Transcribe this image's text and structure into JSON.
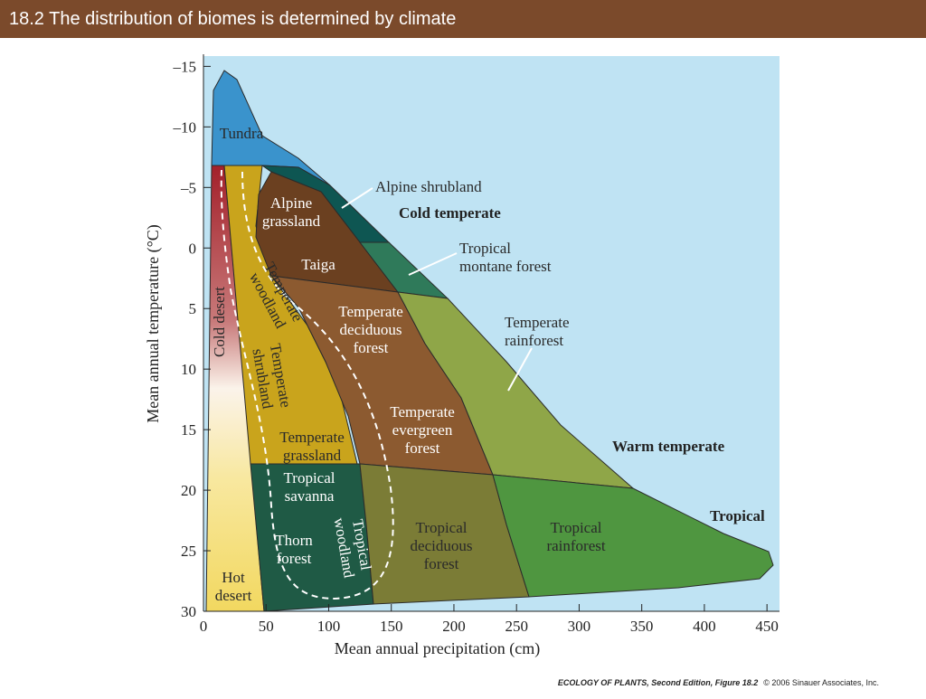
{
  "header": {
    "title": "18.2  The distribution of biomes is determined by climate"
  },
  "chart": {
    "xlabel": "Mean annual precipitation (cm)",
    "ylabel": "Mean annual temperature (°C)",
    "xlim": [
      0,
      460
    ],
    "ylim": [
      -16,
      30
    ],
    "y_inverted": true,
    "xticks": [
      0,
      50,
      100,
      150,
      200,
      250,
      300,
      350,
      400,
      450
    ],
    "yticks": [
      {
        "value": -15,
        "label": "–15"
      },
      {
        "value": -10,
        "label": "–10"
      },
      {
        "value": -5,
        "label": "–5"
      },
      0,
      5,
      10,
      15,
      20,
      25,
      30
    ]
  },
  "biomes": [
    {
      "lines": [
        "Tundra"
      ]
    },
    {
      "lines": [
        "Alpine shrubland"
      ]
    },
    {
      "lines": [
        "Alpine",
        "grassland"
      ]
    },
    {
      "lines": [
        "Taiga"
      ]
    },
    {
      "lines": [
        "Tropical",
        "montane forest"
      ]
    },
    {
      "lines": [
        "Temperate",
        "rainforest"
      ]
    },
    {
      "lines": [
        "Temperate",
        "deciduous",
        "forest"
      ]
    },
    {
      "lines": [
        "Temperate",
        "evergreen",
        "forest"
      ]
    },
    {
      "lines": [
        "Cold desert"
      ]
    },
    {
      "lines": [
        "Temperate",
        "woodland"
      ]
    },
    {
      "lines": [
        "Temperate",
        "shrubland"
      ]
    },
    {
      "lines": [
        "Temperate",
        "grassland"
      ]
    },
    {
      "lines": [
        "Tropical",
        "savanna"
      ]
    },
    {
      "lines": [
        "Thorn",
        "forest"
      ]
    },
    {
      "lines": [
        "Tropical",
        "woodland"
      ]
    },
    {
      "lines": [
        "Tropical",
        "deciduous",
        "forest"
      ]
    },
    {
      "lines": [
        "Tropical",
        "rainforest"
      ]
    },
    {
      "lines": [
        "Hot",
        "desert"
      ]
    }
  ],
  "zones": [
    "Cold temperate",
    "Warm temperate",
    "Tropical"
  ],
  "footer": {
    "figure": "ECOLOGY OF PLANTS, Second Edition, Figure 18.2",
    "copyright": "© 2006 Sinauer Associates, Inc."
  }
}
